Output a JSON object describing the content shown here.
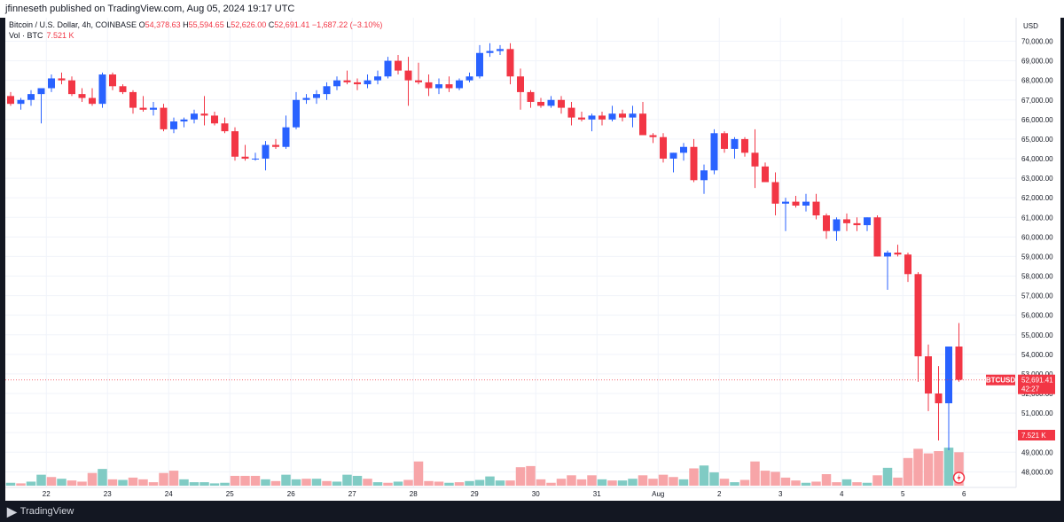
{
  "header": {
    "published_text": "jfinneseth published on TradingView.com, Aug 05, 2024 19:17 UTC"
  },
  "legend": {
    "symbol_text": "Bitcoin / U.S. Dollar, 4h, COINBASE",
    "o_label": "O",
    "o_value": "54,378.63",
    "h_label": "H",
    "h_value": "55,594.65",
    "l_label": "L",
    "l_value": "52,626.00",
    "c_label": "C",
    "c_value": "52,691.41",
    "change": "−1,687.22 (−3.10%)",
    "vol_label": "Vol · BTC",
    "vol_value": "7.521 K"
  },
  "footer": {
    "logo_icon": "tradingview-logo-icon",
    "brand": "TradingView"
  },
  "colors": {
    "up": "#2962ff",
    "down": "#f23645",
    "vol_up": "#80cbc4",
    "vol_down": "#f7a5a8",
    "grid": "#f0f3fa",
    "axis_text": "#131722"
  },
  "chart_data": {
    "type": "candlestick",
    "symbol": "BTCUSD",
    "interval": "4h",
    "currency_label": "USD",
    "last_price_label": "52,691.41",
    "countdown": "42:27",
    "vol_badge": "7.521 K",
    "yticks": [
      "48,000.00",
      "49,000.00",
      "50,000.00",
      "51,000.00",
      "52,000.00",
      "53,000.00",
      "54,000.00",
      "55,000.00",
      "56,000.00",
      "57,000.00",
      "58,000.00",
      "59,000.00",
      "60,000.00",
      "61,000.00",
      "62,000.00",
      "63,000.00",
      "64,000.00",
      "65,000.00",
      "66,000.00",
      "67,000.00",
      "68,000.00",
      "69,000.00",
      "70,000.00"
    ],
    "ylim": [
      47200,
      71200
    ],
    "xticks": [
      {
        "label": "22",
        "index": 3.5
      },
      {
        "label": "23",
        "index": 9.5
      },
      {
        "label": "24",
        "index": 15.5
      },
      {
        "label": "25",
        "index": 21.5
      },
      {
        "label": "26",
        "index": 27.5
      },
      {
        "label": "27",
        "index": 33.5
      },
      {
        "label": "28",
        "index": 39.5
      },
      {
        "label": "29",
        "index": 45.5
      },
      {
        "label": "30",
        "index": 51.5
      },
      {
        "label": "31",
        "index": 57.5
      },
      {
        "label": "Aug",
        "index": 63.5
      },
      {
        "label": "2",
        "index": 69.5
      },
      {
        "label": "3",
        "index": 75.5
      },
      {
        "label": "4",
        "index": 81.5
      },
      {
        "label": "5",
        "index": 87.5
      },
      {
        "label": "6",
        "index": 93.5
      }
    ],
    "candles": [
      [
        67200,
        67400,
        66700,
        66800
      ],
      [
        66800,
        67100,
        66500,
        67000
      ],
      [
        67000,
        67500,
        66700,
        67300
      ],
      [
        67300,
        67500,
        65800,
        67600
      ],
      [
        67600,
        68300,
        67400,
        68100
      ],
      [
        68100,
        68400,
        67800,
        68000
      ],
      [
        68000,
        68200,
        67200,
        67300
      ],
      [
        67300,
        67600,
        66900,
        67100
      ],
      [
        67100,
        67600,
        66700,
        66800
      ],
      [
        66800,
        68400,
        66600,
        68300
      ],
      [
        68300,
        68400,
        67500,
        67700
      ],
      [
        67700,
        67800,
        67300,
        67400
      ],
      [
        67400,
        67500,
        66300,
        66600
      ],
      [
        66600,
        67200,
        66400,
        66500
      ],
      [
        66500,
        66900,
        66200,
        66600
      ],
      [
        66600,
        66800,
        65400,
        65500
      ],
      [
        65500,
        66100,
        65300,
        65900
      ],
      [
        65900,
        66100,
        65600,
        66000
      ],
      [
        66000,
        66500,
        65800,
        66300
      ],
      [
        66300,
        67200,
        65700,
        66200
      ],
      [
        66200,
        66400,
        65700,
        65800
      ],
      [
        65800,
        66100,
        65300,
        65400
      ],
      [
        65400,
        65600,
        63900,
        64100
      ],
      [
        64100,
        64700,
        63900,
        64000
      ],
      [
        64000,
        64300,
        63900,
        64000
      ],
      [
        64000,
        64900,
        63400,
        64700
      ],
      [
        64700,
        65000,
        64500,
        64600
      ],
      [
        64600,
        66200,
        64500,
        65600
      ],
      [
        65600,
        67400,
        65500,
        67000
      ],
      [
        67000,
        67300,
        66800,
        67100
      ],
      [
        67100,
        67500,
        66800,
        67300
      ],
      [
        67300,
        67900,
        67000,
        67700
      ],
      [
        67700,
        68200,
        67500,
        68000
      ],
      [
        68000,
        68500,
        67800,
        67900
      ],
      [
        67900,
        68100,
        67500,
        67800
      ],
      [
        67800,
        68300,
        67600,
        68000
      ],
      [
        68000,
        68500,
        67800,
        68200
      ],
      [
        68200,
        69200,
        68100,
        69000
      ],
      [
        69000,
        69300,
        68300,
        68500
      ],
      [
        68500,
        69200,
        66700,
        68000
      ],
      [
        68000,
        68900,
        67800,
        67900
      ],
      [
        67900,
        68300,
        67200,
        67600
      ],
      [
        67600,
        68100,
        67300,
        67800
      ],
      [
        67800,
        68200,
        67400,
        67600
      ],
      [
        67600,
        68100,
        67500,
        68000
      ],
      [
        68000,
        68400,
        67900,
        68200
      ],
      [
        68200,
        69800,
        68100,
        69400
      ],
      [
        69400,
        69900,
        69200,
        69500
      ],
      [
        69500,
        69800,
        69300,
        69600
      ],
      [
        69600,
        69900,
        67800,
        68200
      ],
      [
        68200,
        68600,
        66500,
        67400
      ],
      [
        67400,
        67500,
        66600,
        66900
      ],
      [
        66900,
        67100,
        66600,
        66700
      ],
      [
        66700,
        67200,
        66600,
        67000
      ],
      [
        67000,
        67200,
        66300,
        66600
      ],
      [
        66600,
        66900,
        65700,
        66100
      ],
      [
        66100,
        66400,
        65900,
        66000
      ],
      [
        66000,
        66300,
        65400,
        66200
      ],
      [
        66200,
        66400,
        65700,
        66000
      ],
      [
        66000,
        66700,
        65900,
        66300
      ],
      [
        66300,
        66500,
        65900,
        66100
      ],
      [
        66100,
        66700,
        65600,
        66300
      ],
      [
        66300,
        66900,
        65300,
        65200
      ],
      [
        65200,
        65300,
        64800,
        65100
      ],
      [
        65100,
        65300,
        63800,
        64000
      ],
      [
        64000,
        64300,
        63300,
        64300
      ],
      [
        64300,
        64800,
        63900,
        64600
      ],
      [
        64600,
        65000,
        62800,
        62900
      ],
      [
        62900,
        63700,
        62200,
        63400
      ],
      [
        63400,
        65500,
        63200,
        65300
      ],
      [
        65300,
        65400,
        64300,
        64500
      ],
      [
        64500,
        65100,
        64000,
        65000
      ],
      [
        65000,
        65100,
        64100,
        64300
      ],
      [
        64300,
        65500,
        62500,
        63600
      ],
      [
        63600,
        63800,
        62800,
        62800
      ],
      [
        62800,
        63300,
        61100,
        61700
      ],
      [
        61700,
        62000,
        60300,
        61800
      ],
      [
        61800,
        62100,
        61500,
        61600
      ],
      [
        61600,
        62200,
        61300,
        61800
      ],
      [
        61800,
        62200,
        60900,
        61100
      ],
      [
        61100,
        61200,
        59900,
        60300
      ],
      [
        60300,
        61000,
        59800,
        60900
      ],
      [
        60900,
        61200,
        60300,
        60700
      ],
      [
        60700,
        61000,
        60300,
        60600
      ],
      [
        60600,
        61000,
        60300,
        61000
      ],
      [
        61000,
        61100,
        59000,
        59000
      ],
      [
        59000,
        59300,
        57300,
        59200
      ],
      [
        59200,
        59600,
        59000,
        59100
      ],
      [
        59100,
        59200,
        57700,
        58100
      ],
      [
        58100,
        58200,
        52600,
        53900
      ],
      [
        53900,
        54500,
        51100,
        52000
      ],
      [
        52000,
        53400,
        49600,
        51500
      ],
      [
        51500,
        54400,
        49100,
        54400
      ],
      [
        54400,
        55600,
        52600,
        52700
      ]
    ],
    "volumes": [
      [
        0.25,
        "up"
      ],
      [
        0.2,
        "down"
      ],
      [
        0.35,
        "up"
      ],
      [
        0.95,
        "up"
      ],
      [
        0.75,
        "down"
      ],
      [
        0.6,
        "up"
      ],
      [
        0.45,
        "down"
      ],
      [
        0.35,
        "down"
      ],
      [
        1.1,
        "down"
      ],
      [
        1.45,
        "up"
      ],
      [
        0.55,
        "down"
      ],
      [
        0.5,
        "up"
      ],
      [
        0.7,
        "down"
      ],
      [
        0.55,
        "down"
      ],
      [
        0.3,
        "down"
      ],
      [
        1.1,
        "down"
      ],
      [
        1.3,
        "down"
      ],
      [
        0.55,
        "up"
      ],
      [
        0.3,
        "up"
      ],
      [
        0.3,
        "up"
      ],
      [
        0.2,
        "up"
      ],
      [
        0.25,
        "up"
      ],
      [
        0.85,
        "down"
      ],
      [
        0.85,
        "down"
      ],
      [
        0.85,
        "down"
      ],
      [
        0.55,
        "up"
      ],
      [
        0.4,
        "down"
      ],
      [
        0.95,
        "up"
      ],
      [
        0.55,
        "up"
      ],
      [
        0.6,
        "down"
      ],
      [
        0.6,
        "up"
      ],
      [
        0.4,
        "down"
      ],
      [
        0.35,
        "up"
      ],
      [
        0.95,
        "up"
      ],
      [
        0.85,
        "up"
      ],
      [
        0.6,
        "down"
      ],
      [
        0.3,
        "up"
      ],
      [
        0.25,
        "down"
      ],
      [
        0.35,
        "up"
      ],
      [
        0.5,
        "down"
      ],
      [
        2.1,
        "down"
      ],
      [
        0.4,
        "down"
      ],
      [
        0.35,
        "down"
      ],
      [
        0.25,
        "up"
      ],
      [
        0.3,
        "down"
      ],
      [
        0.4,
        "up"
      ],
      [
        0.5,
        "up"
      ],
      [
        0.8,
        "up"
      ],
      [
        0.45,
        "up"
      ],
      [
        0.45,
        "down"
      ],
      [
        1.6,
        "down"
      ],
      [
        1.7,
        "down"
      ],
      [
        0.55,
        "down"
      ],
      [
        0.25,
        "down"
      ],
      [
        0.6,
        "down"
      ],
      [
        0.9,
        "down"
      ],
      [
        0.55,
        "down"
      ],
      [
        0.9,
        "down"
      ],
      [
        0.55,
        "up"
      ],
      [
        0.45,
        "down"
      ],
      [
        0.45,
        "up"
      ],
      [
        0.6,
        "up"
      ],
      [
        0.9,
        "down"
      ],
      [
        0.6,
        "down"
      ],
      [
        0.95,
        "down"
      ],
      [
        0.75,
        "down"
      ],
      [
        0.55,
        "up"
      ],
      [
        1.5,
        "down"
      ],
      [
        1.75,
        "up"
      ],
      [
        1.15,
        "up"
      ],
      [
        0.6,
        "down"
      ],
      [
        0.3,
        "up"
      ],
      [
        0.5,
        "down"
      ],
      [
        2.1,
        "down"
      ],
      [
        1.3,
        "down"
      ],
      [
        1.2,
        "down"
      ],
      [
        0.7,
        "down"
      ],
      [
        0.45,
        "down"
      ],
      [
        0.25,
        "up"
      ],
      [
        0.35,
        "down"
      ],
      [
        1.0,
        "down"
      ],
      [
        0.3,
        "down"
      ],
      [
        0.55,
        "up"
      ],
      [
        0.3,
        "down"
      ],
      [
        0.25,
        "up"
      ],
      [
        0.9,
        "down"
      ],
      [
        1.55,
        "up"
      ],
      [
        0.7,
        "down"
      ],
      [
        2.4,
        "down"
      ],
      [
        3.2,
        "down"
      ],
      [
        2.8,
        "down"
      ],
      [
        3.0,
        "down"
      ],
      [
        3.3,
        "up"
      ],
      [
        2.9,
        "down"
      ]
    ]
  }
}
